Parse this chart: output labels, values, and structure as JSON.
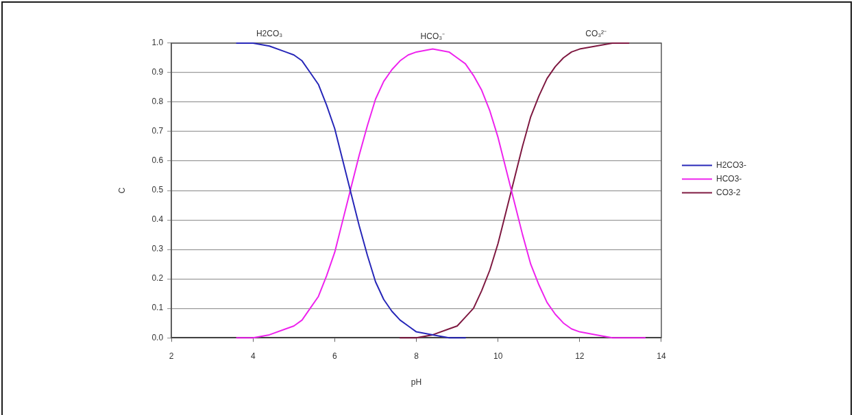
{
  "chart_data": {
    "type": "line",
    "xlabel": "pH",
    "ylabel": "C",
    "xlim": [
      2,
      14
    ],
    "xticks": [
      2,
      4,
      6,
      8,
      10,
      12,
      14
    ],
    "ylim": [
      0,
      1
    ],
    "yticks": [
      {
        "value": 0,
        "label": "0.0"
      },
      0.1,
      0.2,
      0.3,
      0.4,
      0.5,
      0.6,
      0.7,
      0.8,
      0.9,
      {
        "value": 1,
        "label": "1.0"
      }
    ],
    "grid": "y",
    "legend": "right",
    "annotations": [
      {
        "text": "H2CO₃",
        "x": 4.4,
        "y": 0.99
      },
      {
        "text": "HCO₃⁻",
        "x": 8.4,
        "y": 0.98
      },
      {
        "text": "CO₃²⁻",
        "x": 12.4,
        "y": 0.99
      }
    ],
    "series": [
      {
        "name": "H2CO3-",
        "color": "#2626b8",
        "x": [
          3.6,
          4.0,
          4.4,
          4.8,
          5.0,
          5.2,
          5.4,
          5.6,
          5.8,
          6.0,
          6.2,
          6.4,
          6.6,
          6.8,
          7.0,
          7.2,
          7.4,
          7.6,
          7.8,
          8.0,
          8.4,
          8.8,
          9.2
        ],
        "values": [
          1.0,
          1.0,
          0.99,
          0.97,
          0.96,
          0.94,
          0.9,
          0.86,
          0.79,
          0.71,
          0.6,
          0.49,
          0.38,
          0.28,
          0.19,
          0.13,
          0.09,
          0.06,
          0.04,
          0.02,
          0.01,
          0,
          0
        ]
      },
      {
        "name": "HCO3-",
        "color": "#ee22ee",
        "x": [
          3.6,
          4.0,
          4.4,
          4.8,
          5.0,
          5.2,
          5.4,
          5.6,
          5.8,
          6.0,
          6.2,
          6.4,
          6.6,
          6.8,
          7.0,
          7.2,
          7.4,
          7.6,
          7.8,
          8.0,
          8.4,
          8.8,
          9.0,
          9.2,
          9.4,
          9.6,
          9.8,
          10.0,
          10.2,
          10.4,
          10.6,
          10.8,
          11.0,
          11.2,
          11.4,
          11.6,
          11.8,
          12.0,
          12.4,
          12.8,
          13.2,
          13.6
        ],
        "values": [
          0,
          0,
          0.01,
          0.03,
          0.04,
          0.06,
          0.1,
          0.14,
          0.21,
          0.29,
          0.4,
          0.51,
          0.62,
          0.72,
          0.81,
          0.87,
          0.91,
          0.94,
          0.96,
          0.97,
          0.98,
          0.97,
          0.95,
          0.93,
          0.89,
          0.84,
          0.77,
          0.68,
          0.57,
          0.46,
          0.35,
          0.25,
          0.18,
          0.12,
          0.08,
          0.05,
          0.03,
          0.02,
          0.01,
          0,
          0,
          0
        ]
      },
      {
        "name": "CO3-2",
        "color": "#7e1840",
        "x": [
          7.6,
          8.0,
          8.4,
          8.8,
          9.0,
          9.2,
          9.4,
          9.6,
          9.8,
          10.0,
          10.2,
          10.4,
          10.6,
          10.8,
          11.0,
          11.2,
          11.4,
          11.6,
          11.8,
          12.0,
          12.4,
          12.8,
          13.2
        ],
        "values": [
          0,
          0,
          0.01,
          0.03,
          0.04,
          0.07,
          0.1,
          0.16,
          0.23,
          0.32,
          0.43,
          0.54,
          0.65,
          0.75,
          0.82,
          0.88,
          0.92,
          0.95,
          0.97,
          0.98,
          0.99,
          1.0,
          1.0
        ]
      }
    ]
  }
}
